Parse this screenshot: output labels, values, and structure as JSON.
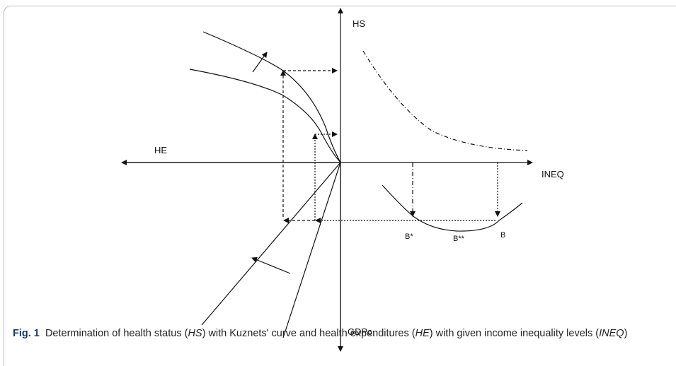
{
  "figure": {
    "axis_labels": {
      "top": "HS",
      "left": "HE",
      "right": "INEQ",
      "bottom": "GDPc"
    },
    "points": [
      "B*",
      "B**",
      "B"
    ],
    "caption": {
      "label": "Fig. 1",
      "parts": [
        "Determination of health status (",
        "HS",
        ") with Kuznets' curve and health expenditures (",
        "HE",
        ") with given income inequality levels (",
        "INEQ",
        ")"
      ]
    }
  }
}
